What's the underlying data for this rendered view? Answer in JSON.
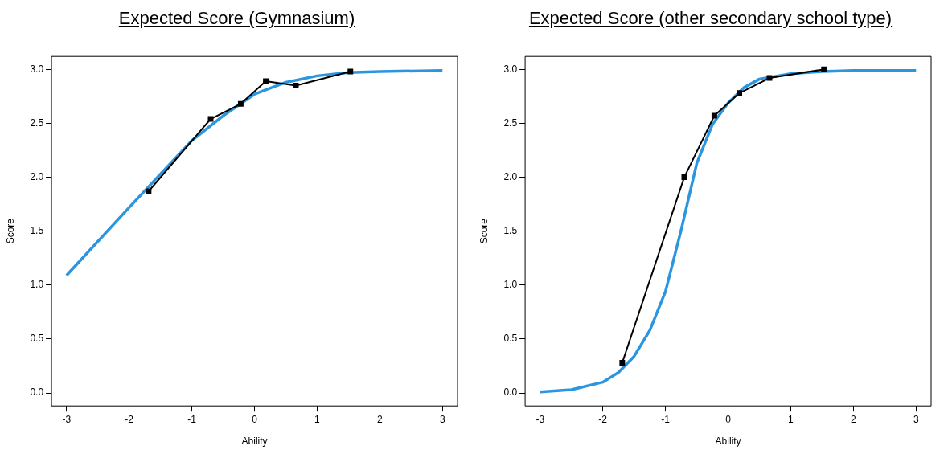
{
  "chart_data": [
    {
      "type": "line",
      "title": "Expected Score (Gymnasium)",
      "xlabel": "Ability",
      "ylabel": "Score",
      "xlim": [
        -3.24,
        3.24
      ],
      "ylim": [
        -0.12,
        3.12
      ],
      "xticks": [
        -3,
        -2,
        -1,
        0,
        1,
        2,
        3
      ],
      "yticks": [
        {
          "value": 0,
          "label": "0.0"
        },
        {
          "value": 0.5,
          "label": "0.5"
        },
        {
          "value": 1,
          "label": "1.0"
        },
        {
          "value": 1.5,
          "label": "1.5"
        },
        {
          "value": 2,
          "label": "2.0"
        },
        {
          "value": 2.5,
          "label": "2.5"
        },
        {
          "value": 3,
          "label": "3.0"
        }
      ],
      "grid": false,
      "legend": false,
      "line_style": "solid",
      "series": [
        {
          "color": "#2b95e0",
          "marker": "none",
          "x": [
            -3,
            -2,
            -1,
            -0.5,
            0,
            0.5,
            1,
            1.5,
            2,
            3
          ],
          "values": [
            1.09,
            1.72,
            2.34,
            2.57,
            2.77,
            2.88,
            2.94,
            2.97,
            2.98,
            2.99
          ]
        },
        {
          "color": "#000000",
          "marker": "square",
          "x": [
            -1.69,
            -0.7,
            -0.22,
            0.18,
            0.66,
            1.53
          ],
          "values": [
            1.87,
            2.54,
            2.68,
            2.89,
            2.85,
            2.98
          ]
        }
      ]
    },
    {
      "type": "line",
      "title": "Expected Score (other secondary school type)",
      "xlabel": "Ability",
      "ylabel": "Score",
      "xlim": [
        -3.24,
        3.24
      ],
      "ylim": [
        -0.12,
        3.12
      ],
      "xticks": [
        -3,
        -2,
        -1,
        0,
        1,
        2,
        3
      ],
      "yticks": [
        {
          "value": 0,
          "label": "0.0"
        },
        {
          "value": 0.5,
          "label": "0.5"
        },
        {
          "value": 1,
          "label": "1.0"
        },
        {
          "value": 1.5,
          "label": "1.5"
        },
        {
          "value": 2,
          "label": "2.0"
        },
        {
          "value": 2.5,
          "label": "2.5"
        },
        {
          "value": 3,
          "label": "3.0"
        }
      ],
      "grid": false,
      "legend": false,
      "line_style": "solid",
      "series": [
        {
          "color": "#2b95e0",
          "marker": "none",
          "x": [
            -3,
            -2.5,
            -2,
            -1.75,
            -1.5,
            -1.25,
            -1,
            -0.75,
            -0.5,
            -0.25,
            0,
            0.25,
            0.5,
            1,
            1.5,
            2,
            3
          ],
          "values": [
            0.01,
            0.03,
            0.1,
            0.19,
            0.34,
            0.58,
            0.94,
            1.51,
            2.13,
            2.49,
            2.69,
            2.83,
            2.91,
            2.96,
            2.98,
            2.99,
            2.99
          ]
        },
        {
          "color": "#000000",
          "marker": "square",
          "x": [
            -1.69,
            -0.7,
            -0.22,
            0.18,
            0.66,
            1.53
          ],
          "values": [
            0.28,
            2.0,
            2.57,
            2.78,
            2.92,
            3.0
          ]
        }
      ]
    }
  ]
}
